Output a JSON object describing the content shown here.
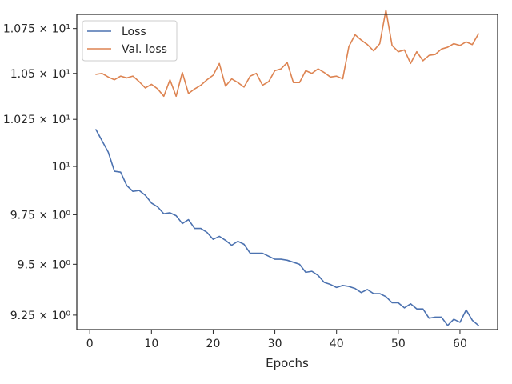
{
  "chart_data": {
    "type": "line",
    "xlabel": "Epochs",
    "ylabel": "",
    "title": "",
    "xlim": [
      -2.1,
      66.1
    ],
    "ylim": [
      9.18,
      10.83
    ],
    "y_scale": "log",
    "grid": false,
    "legend_position": "top-left",
    "x_ticks": [
      {
        "value": 0,
        "label": "0"
      },
      {
        "value": 10,
        "label": "10"
      },
      {
        "value": 20,
        "label": "20"
      },
      {
        "value": 30,
        "label": "30"
      },
      {
        "value": 40,
        "label": "40"
      },
      {
        "value": 50,
        "label": "50"
      },
      {
        "value": 60,
        "label": "60"
      }
    ],
    "y_ticks": [
      {
        "value": 9.25,
        "label": "9.25 × 10⁰"
      },
      {
        "value": 9.5,
        "label": "9.5 × 10⁰"
      },
      {
        "value": 9.75,
        "label": "9.75 × 10⁰"
      },
      {
        "value": 10,
        "label": "10¹"
      },
      {
        "value": 10.25,
        "label": "1.025 × 10¹"
      },
      {
        "value": 10.5,
        "label": "1.05 × 10¹"
      },
      {
        "value": 10.75,
        "label": "1.075 × 10¹"
      }
    ],
    "x": [
      1,
      2,
      3,
      4,
      5,
      6,
      7,
      8,
      9,
      10,
      11,
      12,
      13,
      14,
      15,
      16,
      17,
      18,
      19,
      20,
      21,
      22,
      23,
      24,
      25,
      26,
      27,
      28,
      29,
      30,
      31,
      32,
      33,
      34,
      35,
      36,
      37,
      38,
      39,
      40,
      41,
      42,
      43,
      44,
      45,
      46,
      47,
      48,
      49,
      50,
      51,
      52,
      53,
      54,
      55,
      56,
      57,
      58,
      59,
      60,
      61,
      62,
      63
    ],
    "series": [
      {
        "name": "Loss",
        "color": "#4c72b0",
        "values": [
          10.195,
          10.135,
          10.075,
          9.975,
          9.97,
          9.9,
          9.87,
          9.875,
          9.85,
          9.81,
          9.79,
          9.755,
          9.76,
          9.745,
          9.705,
          9.725,
          9.68,
          9.68,
          9.66,
          9.625,
          9.64,
          9.62,
          9.595,
          9.615,
          9.6,
          9.555,
          9.555,
          9.555,
          9.54,
          9.525,
          9.525,
          9.52,
          9.51,
          9.5,
          9.46,
          9.465,
          9.445,
          9.41,
          9.4,
          9.385,
          9.395,
          9.39,
          9.38,
          9.36,
          9.375,
          9.355,
          9.355,
          9.34,
          9.31,
          9.31,
          9.285,
          9.305,
          9.28,
          9.28,
          9.235,
          9.24,
          9.24,
          9.2,
          9.23,
          9.215,
          9.275,
          9.225,
          9.2
        ]
      },
      {
        "name": "Val. loss",
        "color": "#dd8452",
        "values": [
          10.495,
          10.5,
          10.48,
          10.465,
          10.485,
          10.475,
          10.485,
          10.455,
          10.42,
          10.44,
          10.415,
          10.375,
          10.465,
          10.375,
          10.505,
          10.39,
          10.415,
          10.435,
          10.465,
          10.49,
          10.555,
          10.43,
          10.47,
          10.45,
          10.425,
          10.485,
          10.5,
          10.435,
          10.455,
          10.515,
          10.525,
          10.56,
          10.45,
          10.45,
          10.515,
          10.5,
          10.525,
          10.505,
          10.48,
          10.485,
          10.47,
          10.65,
          10.715,
          10.685,
          10.66,
          10.625,
          10.665,
          10.855,
          10.655,
          10.62,
          10.63,
          10.555,
          10.62,
          10.57,
          10.6,
          10.605,
          10.635,
          10.645,
          10.665,
          10.655,
          10.675,
          10.66,
          10.72
        ]
      }
    ]
  }
}
